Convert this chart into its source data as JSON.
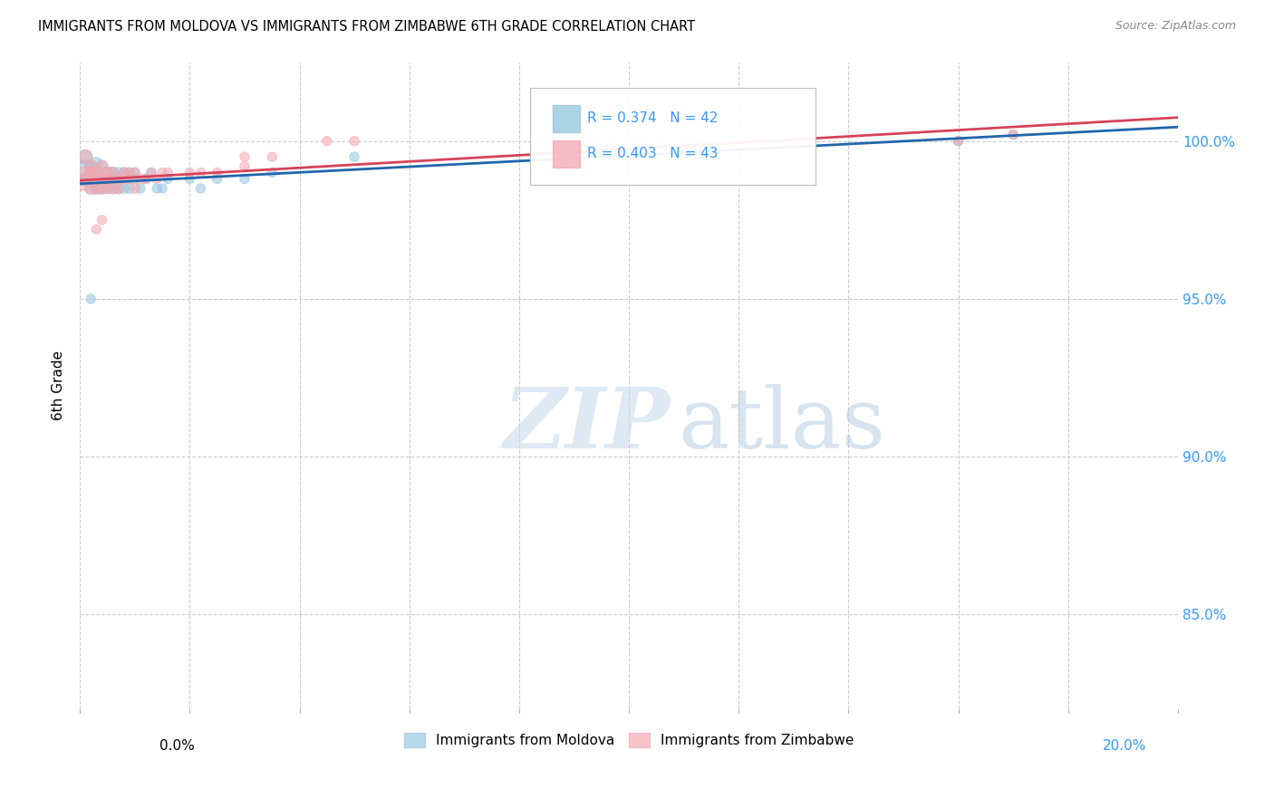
{
  "title": "IMMIGRANTS FROM MOLDOVA VS IMMIGRANTS FROM ZIMBABWE 6TH GRADE CORRELATION CHART",
  "source": "Source: ZipAtlas.com",
  "ylabel": "6th Grade",
  "yticks": [
    100.0,
    95.0,
    90.0,
    85.0
  ],
  "ytick_labels": [
    "100.0%",
    "95.0%",
    "90.0%",
    "85.0%"
  ],
  "xlim": [
    0.0,
    0.2
  ],
  "ylim": [
    82.0,
    102.5
  ],
  "legend_moldova": "Immigrants from Moldova",
  "legend_zimbabwe": "Immigrants from Zimbabwe",
  "r_moldova": 0.374,
  "n_moldova": 42,
  "r_zimbabwe": 0.403,
  "n_zimbabwe": 43,
  "color_moldova": "#92c5de",
  "color_zimbabwe": "#f4a7b0",
  "line_color_moldova": "#2166ac",
  "line_color_zimbabwe": "#d6435a",
  "watermark_zip": "ZIP",
  "watermark_atlas": "atlas",
  "moldova_x": [
    0.0005,
    0.001,
    0.001,
    0.002,
    0.002,
    0.002,
    0.003,
    0.003,
    0.003,
    0.004,
    0.004,
    0.004,
    0.005,
    0.005,
    0.005,
    0.006,
    0.006,
    0.006,
    0.007,
    0.007,
    0.007,
    0.008,
    0.008,
    0.009,
    0.009,
    0.01,
    0.01,
    0.011,
    0.012,
    0.013,
    0.014,
    0.015,
    0.016,
    0.02,
    0.022,
    0.025,
    0.03,
    0.035,
    0.05,
    0.002,
    0.16,
    0.17
  ],
  "moldova_y": [
    99.0,
    99.5,
    98.8,
    99.2,
    98.5,
    99.0,
    99.0,
    98.5,
    99.3,
    98.8,
    99.2,
    98.5,
    98.8,
    99.0,
    98.5,
    98.8,
    99.0,
    98.5,
    98.5,
    99.0,
    98.8,
    98.5,
    99.0,
    98.5,
    99.0,
    98.8,
    99.0,
    98.5,
    98.8,
    99.0,
    98.5,
    98.5,
    98.8,
    98.8,
    98.5,
    98.8,
    98.8,
    99.0,
    99.5,
    95.0,
    100.0,
    100.2
  ],
  "moldova_size": [
    400,
    120,
    100,
    100,
    90,
    85,
    100,
    90,
    85,
    90,
    85,
    80,
    85,
    80,
    75,
    80,
    75,
    70,
    75,
    70,
    65,
    70,
    65,
    65,
    60,
    65,
    60,
    60,
    60,
    55,
    55,
    55,
    55,
    55,
    55,
    55,
    55,
    55,
    55,
    55,
    55,
    55
  ],
  "zimbabwe_x": [
    0.0005,
    0.001,
    0.001,
    0.002,
    0.002,
    0.002,
    0.003,
    0.003,
    0.003,
    0.004,
    0.004,
    0.004,
    0.005,
    0.005,
    0.005,
    0.006,
    0.006,
    0.007,
    0.007,
    0.008,
    0.008,
    0.009,
    0.009,
    0.01,
    0.01,
    0.011,
    0.012,
    0.013,
    0.014,
    0.015,
    0.016,
    0.02,
    0.022,
    0.025,
    0.03,
    0.035,
    0.045,
    0.05,
    0.003,
    0.004,
    0.03,
    0.16,
    0.17
  ],
  "zimbabwe_y": [
    98.8,
    99.5,
    98.8,
    99.2,
    98.5,
    99.0,
    99.0,
    98.8,
    98.5,
    99.2,
    98.5,
    98.8,
    98.8,
    99.0,
    98.5,
    99.0,
    98.5,
    98.8,
    98.5,
    98.8,
    99.0,
    98.8,
    99.0,
    98.5,
    99.0,
    98.8,
    98.8,
    99.0,
    98.8,
    99.0,
    99.0,
    99.0,
    99.0,
    99.0,
    99.5,
    99.5,
    100.0,
    100.0,
    97.2,
    97.5,
    99.2,
    100.0,
    100.2
  ],
  "zimbabwe_size": [
    350,
    120,
    100,
    100,
    90,
    85,
    100,
    90,
    85,
    90,
    85,
    80,
    85,
    80,
    75,
    80,
    75,
    70,
    75,
    70,
    65,
    65,
    60,
    65,
    60,
    60,
    60,
    55,
    55,
    55,
    55,
    55,
    55,
    55,
    55,
    55,
    55,
    55,
    55,
    55,
    55,
    55,
    55
  ]
}
